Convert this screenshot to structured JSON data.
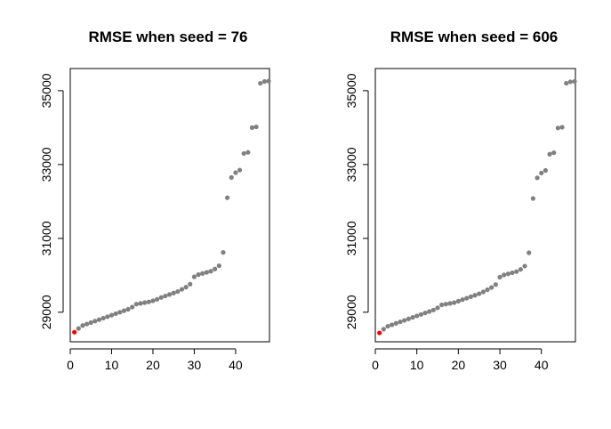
{
  "colors": {
    "background": "#ffffff",
    "point": "#808080",
    "highlight": "#ff0000",
    "axis": "#000000"
  },
  "chart_data": [
    {
      "type": "scatter",
      "title": "RMSE when seed = 76",
      "xlabel": "",
      "ylabel": "",
      "xlim": [
        0,
        48.2
      ],
      "ylim": [
        28200,
        35600
      ],
      "x_ticks": [
        0,
        10,
        20,
        30,
        40
      ],
      "y_ticks": [
        29000,
        31000,
        33000,
        35000
      ],
      "grid": false,
      "highlight_index": 0,
      "x": [
        1,
        2,
        3,
        4,
        5,
        6,
        7,
        8,
        9,
        10,
        11,
        12,
        13,
        14,
        15,
        16,
        17,
        18,
        19,
        20,
        21,
        22,
        23,
        24,
        25,
        26,
        27,
        28,
        29,
        30,
        31,
        32,
        33,
        34,
        35,
        36,
        37,
        38,
        39,
        40,
        41,
        42,
        43,
        44,
        45,
        46,
        47,
        48
      ],
      "y": [
        28460,
        28560,
        28640,
        28680,
        28720,
        28760,
        28800,
        28840,
        28880,
        28920,
        28960,
        29000,
        29040,
        29080,
        29140,
        29220,
        29240,
        29260,
        29280,
        29310,
        29350,
        29400,
        29440,
        29480,
        29520,
        29560,
        29620,
        29680,
        29760,
        29960,
        30020,
        30050,
        30080,
        30110,
        30170,
        30260,
        30620,
        32100,
        32650,
        32780,
        32850,
        33300,
        33330,
        34000,
        34020,
        35200,
        35250,
        35260
      ]
    },
    {
      "type": "scatter",
      "title": "RMSE when seed = 606",
      "xlabel": "",
      "ylabel": "",
      "xlim": [
        0,
        48.2
      ],
      "ylim": [
        28200,
        35600
      ],
      "x_ticks": [
        0,
        10,
        20,
        30,
        40
      ],
      "y_ticks": [
        29000,
        31000,
        33000,
        35000
      ],
      "grid": false,
      "highlight_index": 0,
      "x": [
        1,
        2,
        3,
        4,
        5,
        6,
        7,
        8,
        9,
        10,
        11,
        12,
        13,
        14,
        15,
        16,
        17,
        18,
        19,
        20,
        21,
        22,
        23,
        24,
        25,
        26,
        27,
        28,
        29,
        30,
        31,
        32,
        33,
        34,
        35,
        36,
        37,
        38,
        39,
        40,
        41,
        42,
        43,
        44,
        45,
        46,
        47,
        48
      ],
      "y": [
        28440,
        28540,
        28620,
        28660,
        28700,
        28740,
        28780,
        28820,
        28860,
        28900,
        28940,
        28980,
        29020,
        29060,
        29120,
        29200,
        29220,
        29240,
        29260,
        29300,
        29340,
        29380,
        29420,
        29460,
        29500,
        29550,
        29610,
        29670,
        29750,
        29950,
        30010,
        30040,
        30070,
        30100,
        30160,
        30250,
        30610,
        32080,
        32640,
        32770,
        32840,
        33280,
        33320,
        33990,
        34010,
        35200,
        35240,
        35250
      ]
    }
  ]
}
